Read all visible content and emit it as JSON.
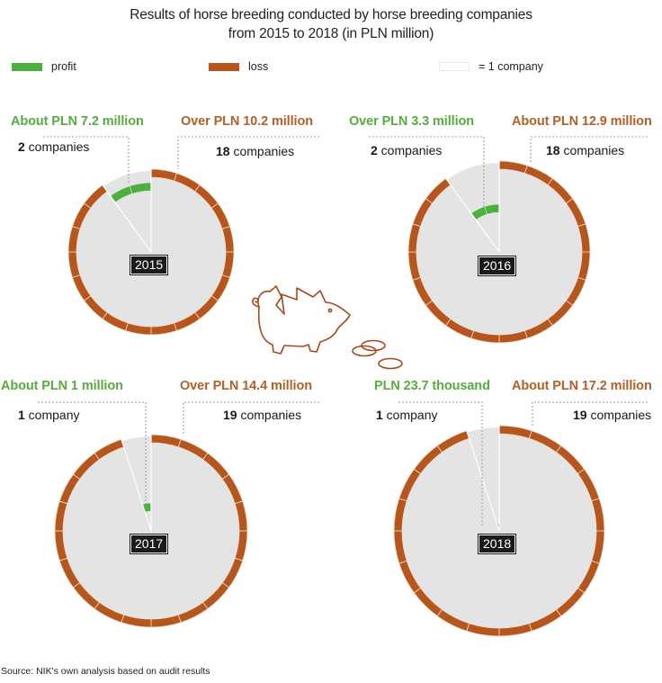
{
  "title": {
    "line1": "Results of horse breeding conducted by horse breeding companies",
    "line2": "from 2015 to 2018 (in PLN million)"
  },
  "legend": {
    "profit": {
      "label": "profit",
      "color": "#4daf3f"
    },
    "loss": {
      "label": "loss",
      "color": "#b5561f"
    },
    "unit": {
      "label": "= 1 company"
    }
  },
  "colors": {
    "profit": "#4daf3f",
    "loss": "#b5561f",
    "disc": "#e4e4e4",
    "profit_text": "#56ad3e",
    "loss_text": "#b35f27"
  },
  "charts": [
    {
      "year": "2015",
      "profit_label": "About PLN 7.2 million",
      "profit_count_num": "2",
      "profit_count_word": " companies",
      "loss_label": "Over PLN 10.2 million",
      "loss_count_num": "18",
      "loss_count_word": " companies"
    },
    {
      "year": "2016",
      "profit_label": "Over PLN 3.3 million",
      "profit_count_num": "2",
      "profit_count_word": " companies",
      "loss_label": "About PLN 12.9 million",
      "loss_count_num": "18",
      "loss_count_word": " companies"
    },
    {
      "year": "2017",
      "profit_label": "About PLN 1 million",
      "profit_count_num": "1",
      "profit_count_word": " company",
      "loss_label": "Over PLN 14.4 million",
      "loss_count_num": "19",
      "loss_count_word": " companies"
    },
    {
      "year": "2018",
      "profit_label": "PLN 23.7 thousand",
      "profit_count_num": "1",
      "profit_count_word": " company",
      "loss_label": "About PLN 17.2 million",
      "loss_count_num": "19",
      "loss_count_word": " companies"
    }
  ],
  "source": "Source: NIK's own analysis based on audit results",
  "chart_data": {
    "type": "pie",
    "title": "Results of horse breeding conducted by horse breeding companies from 2015 to 2018 (in PLN million)",
    "legend": [
      "profit",
      "loss",
      "= 1 company"
    ],
    "categories": [
      "2015",
      "2016",
      "2017",
      "2018"
    ],
    "series": [
      {
        "name": "profit companies",
        "values": [
          2,
          2,
          1,
          1
        ]
      },
      {
        "name": "loss companies",
        "values": [
          18,
          18,
          19,
          19
        ]
      },
      {
        "name": "profit (PLN million)",
        "values": [
          7.2,
          3.3,
          1.0,
          0.0237
        ]
      },
      {
        "name": "loss (PLN million)",
        "values": [
          10.2,
          12.9,
          14.4,
          17.2
        ]
      }
    ],
    "profit_labels": [
      "About PLN 7.2 million",
      "Over PLN 3.3 million",
      "About PLN 1 million",
      "PLN 23.7 thousand"
    ],
    "loss_labels": [
      "Over PLN 10.2 million",
      "About PLN 12.9 million",
      "Over PLN 14.4 million",
      "About PLN 17.2 million"
    ],
    "source": "Source: NIK's own analysis based on audit results"
  }
}
